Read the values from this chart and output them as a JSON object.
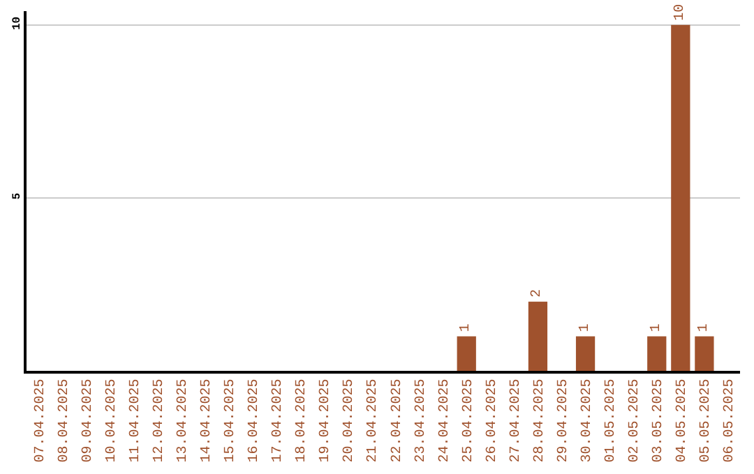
{
  "chart_data": {
    "type": "bar",
    "categories": [
      "07.04.2025",
      "08.04.2025",
      "09.04.2025",
      "10.04.2025",
      "11.04.2025",
      "12.04.2025",
      "13.04.2025",
      "14.04.2025",
      "15.04.2025",
      "16.04.2025",
      "17.04.2025",
      "18.04.2025",
      "19.04.2025",
      "20.04.2025",
      "21.04.2025",
      "22.04.2025",
      "23.04.2025",
      "24.04.2025",
      "25.04.2025",
      "26.04.2025",
      "27.04.2025",
      "28.04.2025",
      "29.04.2025",
      "30.04.2025",
      "01.05.2025",
      "02.05.2025",
      "03.05.2025",
      "04.05.2025",
      "05.05.2025",
      "06.05.2025"
    ],
    "values": [
      0,
      0,
      0,
      0,
      0,
      0,
      0,
      0,
      0,
      0,
      0,
      0,
      0,
      0,
      0,
      0,
      0,
      0,
      1,
      0,
      0,
      2,
      0,
      1,
      0,
      0,
      1,
      10,
      1,
      0
    ],
    "value_labels": [
      null,
      null,
      null,
      null,
      null,
      null,
      null,
      null,
      null,
      null,
      null,
      null,
      null,
      null,
      null,
      null,
      null,
      null,
      "1",
      null,
      null,
      "2",
      null,
      "1",
      null,
      null,
      "1",
      "10",
      "1",
      null
    ],
    "color": "#a0522d",
    "ylim": [
      0,
      10.4
    ],
    "yticks": [
      5,
      10
    ],
    "grid": "y"
  }
}
